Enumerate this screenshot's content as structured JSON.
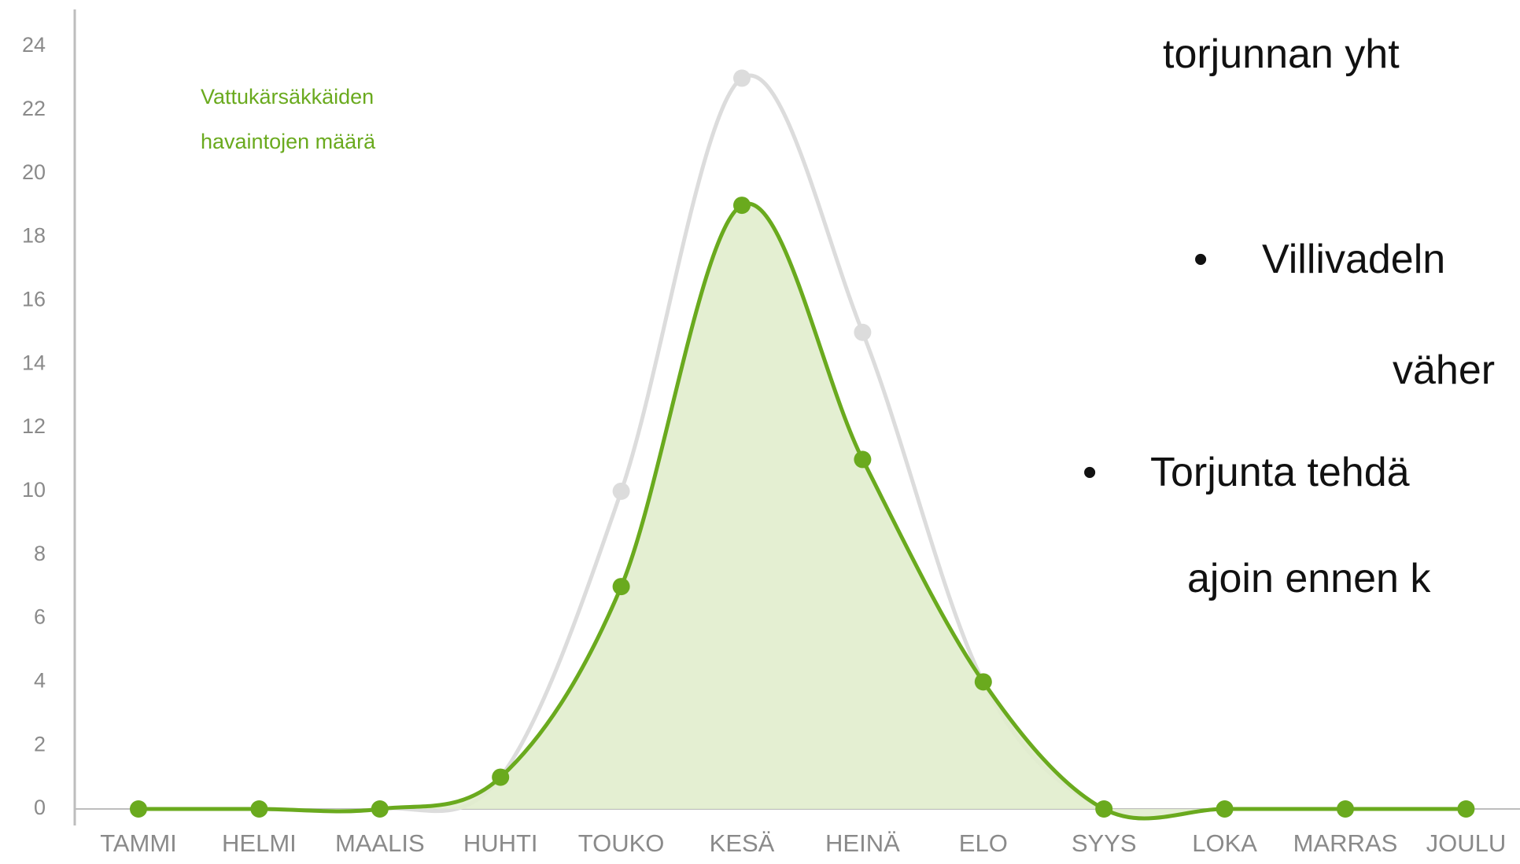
{
  "chart_data": {
    "type": "line",
    "categories": [
      "TAMMI",
      "HELMI",
      "MAALIS",
      "HUHTI",
      "TOUKO",
      "KESÄ",
      "HEINÄ",
      "ELO",
      "SYYS",
      "LOKA",
      "MARRAS",
      "JOULU"
    ],
    "series": [
      {
        "color": "#dcdcdc",
        "values": [
          0,
          0,
          0,
          1,
          10,
          23,
          15,
          4,
          0,
          0,
          0,
          0
        ]
      },
      {
        "name": "Vattukärsäkkäiden havaintojen määrä",
        "color": "#6aaa1e",
        "area_color": "#e1edcd",
        "values": [
          0,
          0,
          0,
          1,
          7,
          19,
          11,
          4,
          0,
          0,
          0,
          0
        ]
      }
    ],
    "ylim": [
      0,
      24
    ],
    "yticks": [
      0,
      2,
      4,
      6,
      8,
      10,
      12,
      14,
      16,
      18,
      20,
      22,
      24
    ]
  },
  "slide_text": {
    "line1": "torjunnan yht",
    "bullet1": "Villivadeln",
    "line2": "väher",
    "bullet2": "Torjunta tehdä",
    "line3": "ajoin ennen k"
  }
}
